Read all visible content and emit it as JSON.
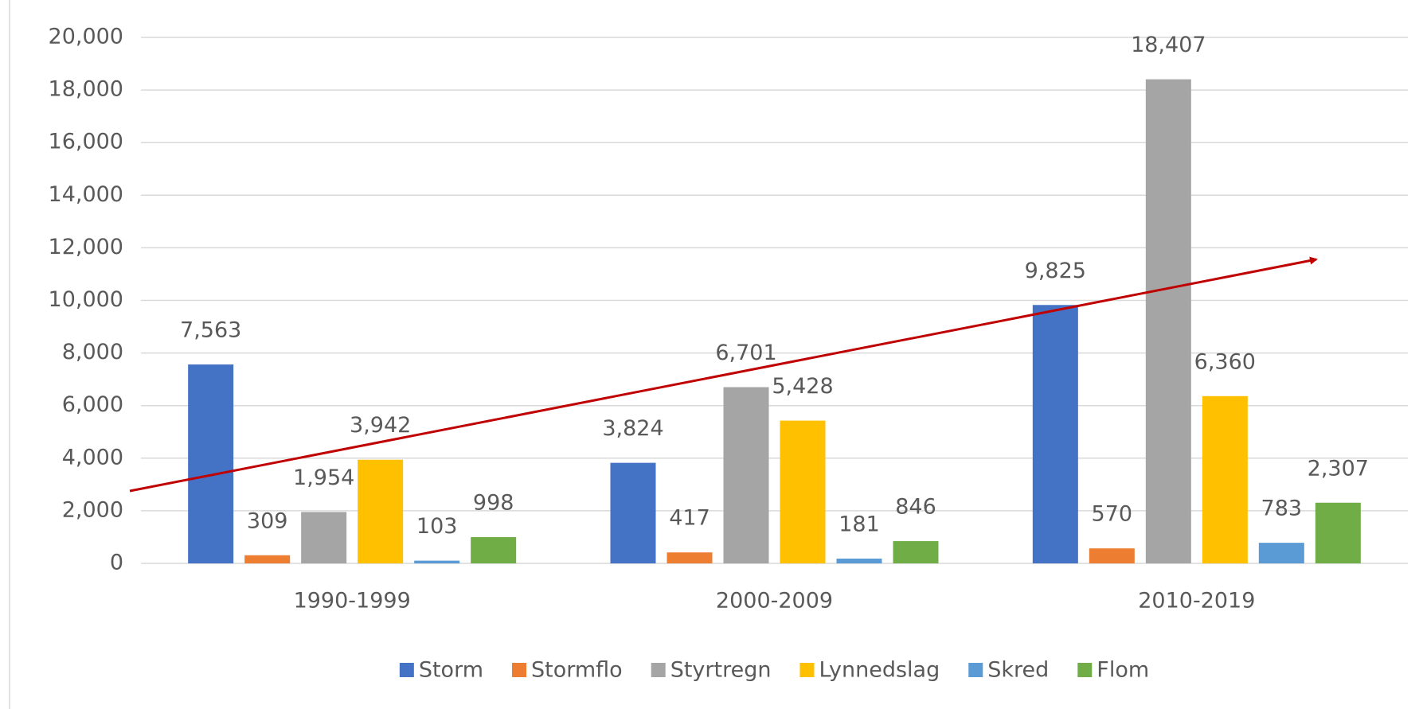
{
  "chart_data": {
    "type": "bar",
    "categories": [
      "1990-1999",
      "2000-2009",
      "2010-2019"
    ],
    "series": [
      {
        "name": "Storm",
        "color": "#4472c4",
        "values": [
          7563,
          3824,
          9825
        ],
        "value_labels": [
          "7,563",
          "3,824",
          "9,825"
        ]
      },
      {
        "name": "Stormflo",
        "color": "#ed7d31",
        "values": [
          309,
          417,
          570
        ]
      },
      {
        "name": "Styrtregn",
        "color": "#a5a5a5",
        "values": [
          1954,
          6701,
          18407
        ],
        "value_labels": [
          "1,954",
          "6,701",
          "18,407"
        ]
      },
      {
        "name": "Lynnedslag",
        "color": "#ffc000",
        "values": [
          3942,
          5428,
          6360
        ],
        "value_labels": [
          "3,942",
          "5,428",
          "6,360"
        ]
      },
      {
        "name": "Skred",
        "color": "#5b9bd5",
        "values": [
          103,
          181,
          783
        ]
      },
      {
        "name": "Flom",
        "color": "#70ad47",
        "values": [
          998,
          846,
          2307
        ],
        "value_labels": [
          "998",
          "846",
          "2,307"
        ]
      }
    ],
    "ylim": [
      0,
      20000
    ],
    "yticks": [
      0,
      {
        "value": 2000,
        "label": "2,000"
      },
      {
        "value": 4000,
        "label": "4,000"
      },
      {
        "value": 6000,
        "label": "6,000"
      },
      {
        "value": 8000,
        "label": "8,000"
      },
      {
        "value": 10000,
        "label": "10,000"
      },
      {
        "value": 12000,
        "label": "12,000"
      },
      {
        "value": 14000,
        "label": "14,000"
      },
      {
        "value": 16000,
        "label": "16,000"
      },
      {
        "value": 18000,
        "label": "18,000"
      },
      {
        "value": 20000,
        "label": "20,000"
      }
    ],
    "grid": true,
    "legend": "bottom"
  }
}
